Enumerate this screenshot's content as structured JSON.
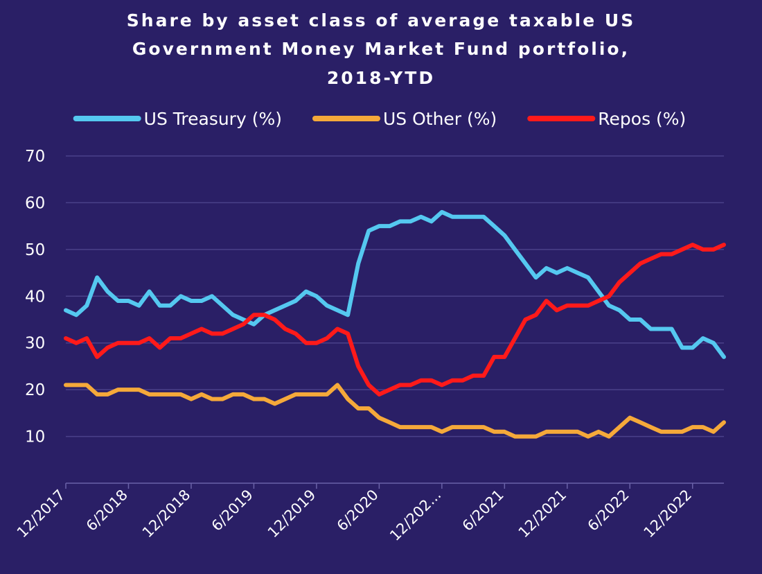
{
  "chart_data": {
    "type": "line",
    "title": [
      "Share by asset class of average taxable US",
      "Government Money Market Fund portfolio,",
      "2018-YTD"
    ],
    "xlabel": "",
    "ylabel": "",
    "ylim": [
      0,
      70
    ],
    "yticks": [
      10,
      20,
      30,
      40,
      50,
      60,
      70
    ],
    "x_tick_labels": [
      "12/2017",
      "6/2018",
      "12/2018",
      "6/2019",
      "12/2019",
      "6/2020",
      "12/202...",
      "6/2021",
      "12/2021",
      "6/2022",
      "12/2022"
    ],
    "x_tick_dates": [
      "2017-12",
      "2018-06",
      "2018-12",
      "2019-06",
      "2019-12",
      "2020-06",
      "2020-12",
      "2021-06",
      "2021-12",
      "2022-06",
      "2022-12"
    ],
    "x_range": [
      "2017-12",
      "2023-03"
    ],
    "grid": "horizontal",
    "legend_position": "top",
    "series": [
      {
        "name": "US Treasury (%)",
        "color": "#55c8f0",
        "points": [
          [
            "2017-12",
            37
          ],
          [
            "2018-01",
            36
          ],
          [
            "2018-02",
            38
          ],
          [
            "2018-03",
            44
          ],
          [
            "2018-04",
            41
          ],
          [
            "2018-05",
            39
          ],
          [
            "2018-06",
            39
          ],
          [
            "2018-07",
            38
          ],
          [
            "2018-08",
            41
          ],
          [
            "2018-09",
            38
          ],
          [
            "2018-10",
            38
          ],
          [
            "2018-11",
            40
          ],
          [
            "2018-12",
            39
          ],
          [
            "2019-01",
            39
          ],
          [
            "2019-02",
            40
          ],
          [
            "2019-03",
            38
          ],
          [
            "2019-04",
            36
          ],
          [
            "2019-05",
            35
          ],
          [
            "2019-06",
            34
          ],
          [
            "2019-07",
            36
          ],
          [
            "2019-08",
            37
          ],
          [
            "2019-09",
            38
          ],
          [
            "2019-10",
            39
          ],
          [
            "2019-11",
            41
          ],
          [
            "2019-12",
            40
          ],
          [
            "2020-01",
            38
          ],
          [
            "2020-02",
            37
          ],
          [
            "2020-03",
            36
          ],
          [
            "2020-04",
            47
          ],
          [
            "2020-05",
            54
          ],
          [
            "2020-06",
            55
          ],
          [
            "2020-07",
            55
          ],
          [
            "2020-08",
            56
          ],
          [
            "2020-09",
            56
          ],
          [
            "2020-10",
            57
          ],
          [
            "2020-11",
            56
          ],
          [
            "2020-12",
            58
          ],
          [
            "2021-01",
            57
          ],
          [
            "2021-02",
            57
          ],
          [
            "2021-03",
            57
          ],
          [
            "2021-04",
            57
          ],
          [
            "2021-05",
            55
          ],
          [
            "2021-06",
            53
          ],
          [
            "2021-07",
            50
          ],
          [
            "2021-08",
            47
          ],
          [
            "2021-09",
            44
          ],
          [
            "2021-10",
            46
          ],
          [
            "2021-11",
            45
          ],
          [
            "2021-12",
            46
          ],
          [
            "2022-01",
            45
          ],
          [
            "2022-02",
            44
          ],
          [
            "2022-03",
            41
          ],
          [
            "2022-04",
            38
          ],
          [
            "2022-05",
            37
          ],
          [
            "2022-06",
            35
          ],
          [
            "2022-07",
            35
          ],
          [
            "2022-08",
            33
          ],
          [
            "2022-09",
            33
          ],
          [
            "2022-10",
            33
          ],
          [
            "2022-11",
            29
          ],
          [
            "2022-12",
            29
          ],
          [
            "2023-01",
            31
          ],
          [
            "2023-02",
            30
          ],
          [
            "2023-03",
            27
          ]
        ]
      },
      {
        "name": "US Other (%)",
        "color": "#f5a93a",
        "points": [
          [
            "2017-12",
            21
          ],
          [
            "2018-01",
            21
          ],
          [
            "2018-02",
            21
          ],
          [
            "2018-03",
            19
          ],
          [
            "2018-04",
            19
          ],
          [
            "2018-05",
            20
          ],
          [
            "2018-06",
            20
          ],
          [
            "2018-07",
            20
          ],
          [
            "2018-08",
            19
          ],
          [
            "2018-09",
            19
          ],
          [
            "2018-10",
            19
          ],
          [
            "2018-11",
            19
          ],
          [
            "2018-12",
            18
          ],
          [
            "2019-01",
            19
          ],
          [
            "2019-02",
            18
          ],
          [
            "2019-03",
            18
          ],
          [
            "2019-04",
            19
          ],
          [
            "2019-05",
            19
          ],
          [
            "2019-06",
            18
          ],
          [
            "2019-07",
            18
          ],
          [
            "2019-08",
            17
          ],
          [
            "2019-09",
            18
          ],
          [
            "2019-10",
            19
          ],
          [
            "2019-11",
            19
          ],
          [
            "2019-12",
            19
          ],
          [
            "2020-01",
            19
          ],
          [
            "2020-02",
            21
          ],
          [
            "2020-03",
            18
          ],
          [
            "2020-04",
            16
          ],
          [
            "2020-05",
            16
          ],
          [
            "2020-06",
            14
          ],
          [
            "2020-07",
            13
          ],
          [
            "2020-08",
            12
          ],
          [
            "2020-09",
            12
          ],
          [
            "2020-10",
            12
          ],
          [
            "2020-11",
            12
          ],
          [
            "2020-12",
            11
          ],
          [
            "2021-01",
            12
          ],
          [
            "2021-02",
            12
          ],
          [
            "2021-03",
            12
          ],
          [
            "2021-04",
            12
          ],
          [
            "2021-05",
            11
          ],
          [
            "2021-06",
            11
          ],
          [
            "2021-07",
            10
          ],
          [
            "2021-08",
            10
          ],
          [
            "2021-09",
            10
          ],
          [
            "2021-10",
            11
          ],
          [
            "2021-11",
            11
          ],
          [
            "2021-12",
            11
          ],
          [
            "2022-01",
            11
          ],
          [
            "2022-02",
            10
          ],
          [
            "2022-03",
            11
          ],
          [
            "2022-04",
            10
          ],
          [
            "2022-05",
            12
          ],
          [
            "2022-06",
            14
          ],
          [
            "2022-07",
            13
          ],
          [
            "2022-08",
            12
          ],
          [
            "2022-09",
            11
          ],
          [
            "2022-10",
            11
          ],
          [
            "2022-11",
            11
          ],
          [
            "2022-12",
            12
          ],
          [
            "2023-01",
            12
          ],
          [
            "2023-02",
            11
          ],
          [
            "2023-03",
            13
          ]
        ]
      },
      {
        "name": "Repos (%)",
        "color": "#ff1a1a",
        "points": [
          [
            "2017-12",
            31
          ],
          [
            "2018-01",
            30
          ],
          [
            "2018-02",
            31
          ],
          [
            "2018-03",
            27
          ],
          [
            "2018-04",
            29
          ],
          [
            "2018-05",
            30
          ],
          [
            "2018-06",
            30
          ],
          [
            "2018-07",
            30
          ],
          [
            "2018-08",
            31
          ],
          [
            "2018-09",
            29
          ],
          [
            "2018-10",
            31
          ],
          [
            "2018-11",
            31
          ],
          [
            "2018-12",
            32
          ],
          [
            "2019-01",
            33
          ],
          [
            "2019-02",
            32
          ],
          [
            "2019-03",
            32
          ],
          [
            "2019-04",
            33
          ],
          [
            "2019-05",
            34
          ],
          [
            "2019-06",
            36
          ],
          [
            "2019-07",
            36
          ],
          [
            "2019-08",
            35
          ],
          [
            "2019-09",
            33
          ],
          [
            "2019-10",
            32
          ],
          [
            "2019-11",
            30
          ],
          [
            "2019-12",
            30
          ],
          [
            "2020-01",
            31
          ],
          [
            "2020-02",
            33
          ],
          [
            "2020-03",
            32
          ],
          [
            "2020-04",
            25
          ],
          [
            "2020-05",
            21
          ],
          [
            "2020-06",
            19
          ],
          [
            "2020-07",
            20
          ],
          [
            "2020-08",
            21
          ],
          [
            "2020-09",
            21
          ],
          [
            "2020-10",
            22
          ],
          [
            "2020-11",
            22
          ],
          [
            "2020-12",
            21
          ],
          [
            "2021-01",
            22
          ],
          [
            "2021-02",
            22
          ],
          [
            "2021-03",
            23
          ],
          [
            "2021-04",
            23
          ],
          [
            "2021-05",
            27
          ],
          [
            "2021-06",
            27
          ],
          [
            "2021-07",
            31
          ],
          [
            "2021-08",
            35
          ],
          [
            "2021-09",
            36
          ],
          [
            "2021-10",
            39
          ],
          [
            "2021-11",
            37
          ],
          [
            "2021-12",
            38
          ],
          [
            "2022-01",
            38
          ],
          [
            "2022-02",
            38
          ],
          [
            "2022-03",
            39
          ],
          [
            "2022-04",
            40
          ],
          [
            "2022-05",
            43
          ],
          [
            "2022-06",
            45
          ],
          [
            "2022-07",
            47
          ],
          [
            "2022-08",
            48
          ],
          [
            "2022-09",
            49
          ],
          [
            "2022-10",
            49
          ],
          [
            "2022-11",
            50
          ],
          [
            "2022-12",
            51
          ],
          [
            "2023-01",
            50
          ],
          [
            "2023-02",
            50
          ],
          [
            "2023-03",
            51
          ]
        ]
      }
    ]
  }
}
